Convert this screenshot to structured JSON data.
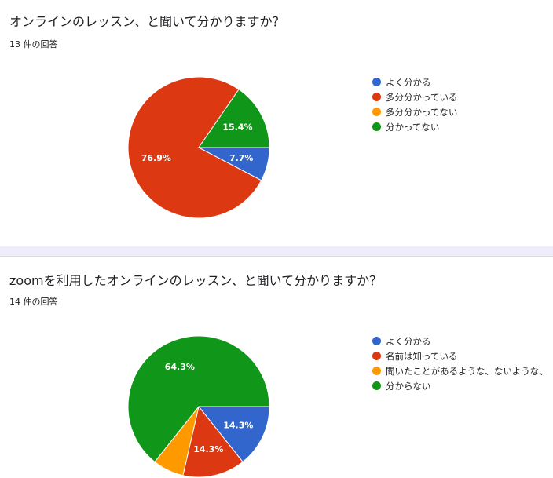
{
  "colors": [
    "#3366cc",
    "#dc3912",
    "#ff9900",
    "#109618"
  ],
  "chart_data": [
    {
      "type": "pie",
      "title": "オンラインのレッスン、と聞いて分かりますか？",
      "subtitle": "13 件の回答",
      "categories": [
        "よく分かる",
        "多分分かっている",
        "多分分かってない",
        "分かってない"
      ],
      "values": [
        7.7,
        76.9,
        0,
        15.4
      ],
      "slice_labels": [
        "7.7%",
        "76.9%",
        "",
        "15.4%"
      ],
      "legend_position": "right"
    },
    {
      "type": "pie",
      "title": "zoomを利用したオンラインのレッスン、と聞いて分かりますか？",
      "subtitle": "14 件の回答",
      "categories": [
        "よく分かる",
        "名前は知っている",
        "聞いたことがあるような、ないような、",
        "分からない"
      ],
      "values": [
        14.3,
        14.3,
        7.1,
        64.3
      ],
      "slice_labels": [
        "14.3%",
        "14.3%",
        "",
        "64.3%"
      ],
      "legend_position": "right"
    }
  ]
}
